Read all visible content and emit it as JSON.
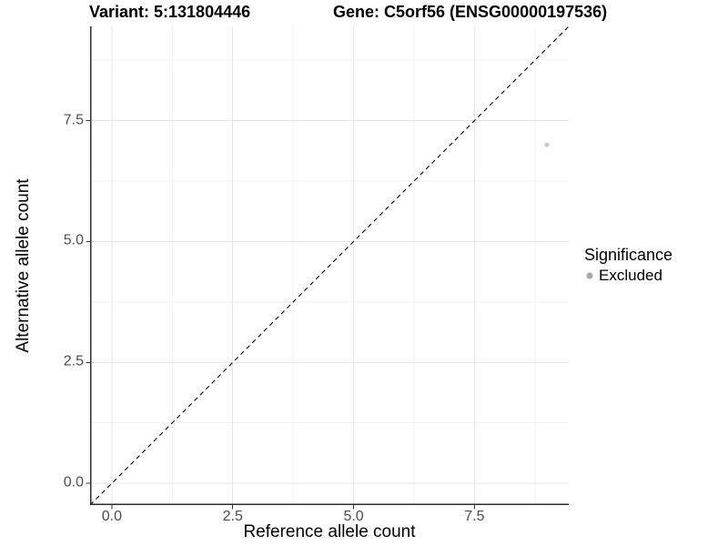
{
  "header": {
    "title_left": "Variant: 5:131804446",
    "title_right": "Gene: C5orf56 (ENSG00000197536)"
  },
  "legend": {
    "title": "Significance",
    "items": [
      {
        "label": "Excluded",
        "key_color": "#a8a8a8"
      }
    ]
  },
  "colors": {
    "background": "#ffffff",
    "grid_major": "#e6e6e6",
    "grid_minor": "#f2f2f2",
    "axis_line": "#2e2e2e",
    "tick_mark": "#333333",
    "tick_label": "#4d4d4d",
    "reference_line": "#1a1a1a",
    "point": "#c8c8c8"
  },
  "chart_data": {
    "type": "scatter",
    "title": "Variant: 5:131804446    Gene: C5orf56 (ENSG00000197536)",
    "xlabel": "Reference allele count",
    "ylabel": "Alternative allele count",
    "xlim": [
      -0.45,
      9.45
    ],
    "ylim": [
      -0.45,
      9.45
    ],
    "x_ticks": {
      "values": [
        0,
        2.5,
        5,
        7.5
      ],
      "labels": [
        "0.0",
        "2.5",
        "5.0",
        "7.5"
      ]
    },
    "y_ticks": {
      "values": [
        0,
        2.5,
        5,
        7.5
      ],
      "labels": [
        "0.0",
        "2.5",
        "5.0",
        "7.5"
      ]
    },
    "minor_ticks": [
      1.25,
      3.75,
      6.25,
      8.75
    ],
    "grid": "major+minor",
    "legend_position": "right",
    "reference_line": {
      "kind": "identity y=x",
      "style": "dashed",
      "from": [
        -0.45,
        -0.45
      ],
      "to": [
        9.45,
        9.45
      ]
    },
    "series": [
      {
        "name": "Excluded",
        "point_color": "#c8c8c8",
        "points": [
          {
            "x": 9,
            "y": 7
          }
        ]
      }
    ]
  }
}
